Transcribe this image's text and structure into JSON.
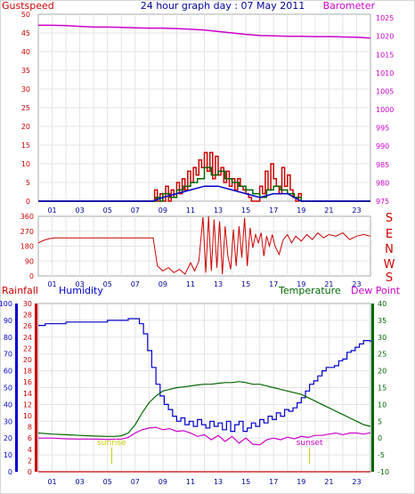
{
  "header": {
    "gust_label": "Gustspeed",
    "title": "24 hour graph day : 07 May 2011",
    "baro_label": "Barometer"
  },
  "wind_dir_labels": [
    "S",
    "E",
    "N",
    "W",
    "S"
  ],
  "bottom_labels": {
    "rainfall": "Rainfall",
    "humidity": "Humidity",
    "temperature": "Temperature",
    "dewpoint": "Dew Point",
    "sunrise": "sunrise",
    "sunset": "sunset"
  },
  "colors": {
    "gust": "#cc0000",
    "wind": "#006600",
    "avg": "#0000cc",
    "barometer": "#cc00cc",
    "direction": "#cc0000",
    "humidity": "#0000cc",
    "temperature": "#006600",
    "dewpoint": "#cc00cc",
    "rainfall": "#cc0000",
    "sun_marker": "#cccc00",
    "title": "#000099"
  },
  "chart_data": [
    {
      "type": "line",
      "title": "24 hour graph day : 07 May 2011",
      "xlabel": "",
      "x_ticks": [
        "01",
        "03",
        "05",
        "07",
        "09",
        "11",
        "13",
        "15",
        "17",
        "19",
        "21",
        "23"
      ],
      "xlim": [
        0,
        24
      ],
      "left_axis": {
        "label": "Gustspeed",
        "lim": [
          0,
          50
        ],
        "ticks": [
          0,
          5,
          10,
          15,
          20,
          25,
          30,
          35,
          40,
          45,
          50
        ]
      },
      "right_axis": {
        "label": "Barometer",
        "lim": [
          975,
          1026
        ],
        "ticks": [
          975,
          980,
          985,
          990,
          995,
          1000,
          1005,
          1010,
          1015,
          1020,
          1025
        ]
      },
      "grid": true,
      "series": [
        {
          "name": "Gustspeed",
          "axis": "left",
          "style": "step",
          "x": [
            0,
            8.3,
            8.4,
            8.6,
            8.8,
            9.0,
            9.2,
            9.4,
            9.6,
            9.8,
            10.0,
            10.2,
            10.4,
            10.6,
            10.8,
            11.0,
            11.2,
            11.4,
            11.6,
            11.8,
            12.0,
            12.2,
            12.4,
            12.6,
            12.8,
            13.0,
            13.2,
            13.4,
            13.6,
            13.8,
            14.0,
            14.2,
            14.4,
            14.6,
            14.8,
            15.0,
            15.2,
            15.4,
            15.6,
            15.8,
            16.0,
            16.2,
            16.4,
            16.6,
            16.8,
            17.0,
            17.2,
            17.4,
            17.6,
            17.8,
            18.0,
            18.2,
            18.4,
            18.6,
            18.8,
            19.0,
            19.2,
            24
          ],
          "y": [
            0,
            0,
            3,
            0,
            2,
            0,
            4,
            0,
            3,
            1,
            5,
            2,
            6,
            3,
            8,
            5,
            9,
            7,
            11,
            9,
            13,
            8,
            13,
            6,
            12,
            7,
            9,
            5,
            8,
            4,
            6,
            3,
            6,
            4,
            3,
            2,
            1,
            0,
            0,
            0,
            4,
            2,
            8,
            3,
            10,
            6,
            4,
            2,
            9,
            4,
            7,
            3,
            1,
            0,
            2,
            0,
            0,
            0
          ]
        },
        {
          "name": "Windspeed",
          "axis": "left",
          "style": "step",
          "x": [
            0,
            8.3,
            8.5,
            8.8,
            9.0,
            9.5,
            10.0,
            10.5,
            11.0,
            11.5,
            12.0,
            12.5,
            13.0,
            13.5,
            14.0,
            14.5,
            15.0,
            15.5,
            16.0,
            16.5,
            17.0,
            17.5,
            18.0,
            18.5,
            19.0,
            24
          ],
          "y": [
            0,
            0,
            1,
            0,
            2,
            1,
            3,
            4,
            5,
            6,
            9,
            7,
            8,
            6,
            5,
            4,
            3,
            2,
            1,
            3,
            4,
            3,
            2,
            1,
            0,
            0
          ]
        },
        {
          "name": "Average",
          "axis": "left",
          "style": "line",
          "x": [
            0,
            8.3,
            9,
            10,
            11,
            12,
            13,
            14,
            15,
            16,
            17,
            18,
            19,
            24
          ],
          "y": [
            0,
            0,
            1,
            2,
            3,
            4,
            4,
            3,
            2,
            1,
            2,
            2,
            0,
            0
          ]
        },
        {
          "name": "Barometer",
          "axis": "right",
          "style": "line",
          "x": [
            0,
            1,
            2,
            3,
            4,
            5,
            6,
            7,
            8,
            9,
            10,
            11,
            12,
            13,
            14,
            15,
            16,
            17,
            18,
            19,
            20,
            21,
            22,
            23,
            24
          ],
          "y": [
            1023.0,
            1023.0,
            1022.9,
            1022.7,
            1022.5,
            1022.5,
            1022.4,
            1022.3,
            1022.2,
            1022.2,
            1022.1,
            1021.9,
            1021.7,
            1021.3,
            1020.9,
            1020.5,
            1020.2,
            1020.1,
            1020.0,
            1020.0,
            1019.9,
            1019.9,
            1019.8,
            1019.7,
            1019.5
          ]
        }
      ]
    },
    {
      "type": "line",
      "title": "",
      "xlabel": "",
      "x_ticks": [
        "01",
        "03",
        "05",
        "07",
        "09",
        "11",
        "13",
        "15",
        "17",
        "19",
        "21",
        "23"
      ],
      "xlim": [
        0,
        24
      ],
      "y_axis": {
        "lim": [
          0,
          360
        ],
        "ticks": [
          0,
          90,
          180,
          270,
          360
        ]
      },
      "right_labels": [
        "S",
        "E",
        "N",
        "W",
        "S"
      ],
      "grid": true,
      "series": [
        {
          "name": "Wind direction",
          "style": "line",
          "x": [
            0,
            0.4,
            0.8,
            1.2,
            1.6,
            2,
            3,
            4,
            5,
            6,
            7,
            8,
            8.3,
            8.6,
            9.0,
            9.4,
            9.8,
            10.2,
            10.6,
            11.0,
            11.3,
            11.6,
            11.9,
            12.1,
            12.3,
            12.5,
            12.7,
            12.9,
            13.1,
            13.3,
            13.5,
            13.7,
            13.9,
            14.1,
            14.3,
            14.5,
            14.7,
            14.9,
            15.1,
            15.3,
            15.5,
            15.7,
            15.9,
            16.1,
            16.3,
            16.5,
            16.7,
            16.9,
            17.1,
            17.4,
            17.7,
            18,
            18.3,
            18.6,
            19,
            19.4,
            19.8,
            20.2,
            20.6,
            21,
            21.5,
            22,
            22.5,
            23,
            23.5,
            24
          ],
          "y": [
            200,
            215,
            225,
            230,
            230,
            230,
            230,
            230,
            230,
            230,
            230,
            230,
            230,
            60,
            30,
            50,
            20,
            40,
            10,
            80,
            30,
            90,
            355,
            20,
            360,
            30,
            340,
            50,
            330,
            10,
            300,
            120,
            40,
            280,
            60,
            300,
            110,
            350,
            60,
            290,
            170,
            250,
            200,
            260,
            120,
            240,
            180,
            250,
            180,
            130,
            220,
            250,
            200,
            240,
            210,
            250,
            220,
            260,
            230,
            250,
            240,
            260,
            220,
            240,
            250,
            240
          ]
        }
      ]
    },
    {
      "type": "line",
      "title": "",
      "xlabel": "",
      "x_ticks": [
        "01",
        "03",
        "05",
        "07",
        "09",
        "11",
        "13",
        "15",
        "17",
        "19",
        "21",
        "23"
      ],
      "xlim": [
        0,
        24
      ],
      "rainfall_axis": {
        "label": "Rainfall",
        "lim": [
          0,
          30
        ],
        "ticks": [
          0,
          2,
          4,
          6,
          8,
          10,
          12,
          14,
          16,
          18,
          20,
          22,
          24,
          26,
          28,
          30
        ]
      },
      "humidity_axis": {
        "label": "Humidity",
        "lim": [
          0,
          100
        ],
        "ticks": [
          0,
          10,
          20,
          30,
          40,
          50,
          60,
          70,
          80,
          90,
          100
        ]
      },
      "temperature_axis": {
        "label": "Temperature",
        "lim": [
          -10,
          40
        ],
        "ticks": [
          -10,
          -5,
          0,
          5,
          10,
          15,
          20,
          25,
          30,
          35,
          40
        ]
      },
      "annotations": [
        {
          "label": "sunrise",
          "x": 5.3
        },
        {
          "label": "sunset",
          "x": 19.6
        }
      ],
      "grid": true,
      "series": [
        {
          "name": "Humidity",
          "axis": "humidity",
          "style": "step",
          "x": [
            0,
            0.5,
            1,
            1.5,
            2,
            3,
            4,
            5,
            6,
            6.5,
            7,
            7.3,
            7.6,
            7.9,
            8.2,
            8.5,
            8.8,
            9.1,
            9.4,
            9.7,
            10,
            10.3,
            10.6,
            10.9,
            11.2,
            11.5,
            11.8,
            12.1,
            12.4,
            12.7,
            13,
            13.3,
            13.6,
            13.9,
            14.2,
            14.5,
            14.8,
            15.1,
            15.4,
            15.7,
            16,
            16.3,
            16.6,
            16.9,
            17.2,
            17.5,
            17.8,
            18.1,
            18.4,
            18.7,
            19,
            19.3,
            19.6,
            19.9,
            20.2,
            20.5,
            20.8,
            21.1,
            21.4,
            21.7,
            22,
            22.3,
            22.6,
            22.9,
            23.2,
            23.5,
            23.8,
            24
          ],
          "y": [
            87,
            88,
            88,
            88,
            89,
            89,
            89,
            90,
            90,
            91,
            91,
            88,
            82,
            72,
            62,
            52,
            45,
            40,
            37,
            33,
            30,
            32,
            28,
            30,
            27,
            31,
            28,
            26,
            30,
            27,
            29,
            25,
            30,
            24,
            28,
            30,
            24,
            26,
            29,
            27,
            31,
            29,
            33,
            31,
            35,
            33,
            37,
            36,
            38,
            41,
            44,
            48,
            52,
            54,
            57,
            60,
            62,
            62,
            63,
            66,
            67,
            71,
            72,
            74,
            76,
            78,
            78,
            77
          ]
        },
        {
          "name": "Temperature",
          "axis": "temperature",
          "style": "line",
          "x": [
            0,
            1,
            2,
            3,
            4,
            5,
            5.5,
            6,
            6.5,
            7,
            7.5,
            8,
            8.5,
            9,
            9.5,
            10,
            10.5,
            11,
            11.5,
            12,
            12.5,
            13,
            13.5,
            14,
            14.5,
            15,
            15.5,
            16,
            16.5,
            17,
            17.5,
            18,
            18.5,
            19,
            19.5,
            20,
            20.5,
            21,
            21.5,
            22,
            22.5,
            23,
            23.5,
            24
          ],
          "y": [
            1.5,
            1.2,
            1.0,
            0.8,
            0.6,
            0.5,
            0.5,
            0.7,
            1.5,
            4.0,
            7.5,
            10.5,
            12.5,
            14.0,
            14.5,
            15.0,
            15.2,
            15.5,
            15.8,
            16.0,
            16.0,
            16.3,
            16.5,
            16.5,
            16.8,
            16.5,
            16.0,
            16.0,
            15.5,
            15.0,
            14.5,
            14.0,
            13.5,
            13.0,
            12.0,
            11.0,
            10.0,
            9.0,
            8.0,
            7.0,
            6.0,
            5.0,
            4.0,
            3.5
          ]
        },
        {
          "name": "Dew Point",
          "axis": "temperature",
          "style": "line",
          "x": [
            0,
            1,
            2,
            3,
            4,
            5,
            6,
            6.5,
            7,
            7.5,
            8,
            8.5,
            9,
            9.5,
            10,
            10.5,
            11,
            11.5,
            12,
            12.5,
            13,
            13.5,
            14,
            14.5,
            15,
            15.5,
            16,
            16.5,
            17,
            17.5,
            18,
            18.5,
            19,
            19.5,
            20,
            20.5,
            21,
            21.5,
            22,
            22.5,
            23,
            23.5,
            24
          ],
          "y": [
            0,
            0,
            -0.2,
            -0.3,
            -0.3,
            -0.4,
            -0.3,
            0.2,
            1.5,
            2.5,
            3.0,
            3.2,
            2.5,
            2.8,
            2.0,
            2.2,
            1.5,
            0.5,
            1.0,
            -0.5,
            0.8,
            -1.0,
            0.5,
            -1.5,
            0,
            -1.8,
            -2.0,
            -0.5,
            0,
            -0.5,
            0.3,
            -0.2,
            0.5,
            0.2,
            0.8,
            0.8,
            1.2,
            1.5,
            1.0,
            1.5,
            1.5,
            1.2,
            1.6
          ]
        },
        {
          "name": "Rainfall",
          "axis": "rainfall",
          "style": "line",
          "x": [
            0,
            24
          ],
          "y": [
            0,
            0
          ]
        }
      ]
    }
  ]
}
